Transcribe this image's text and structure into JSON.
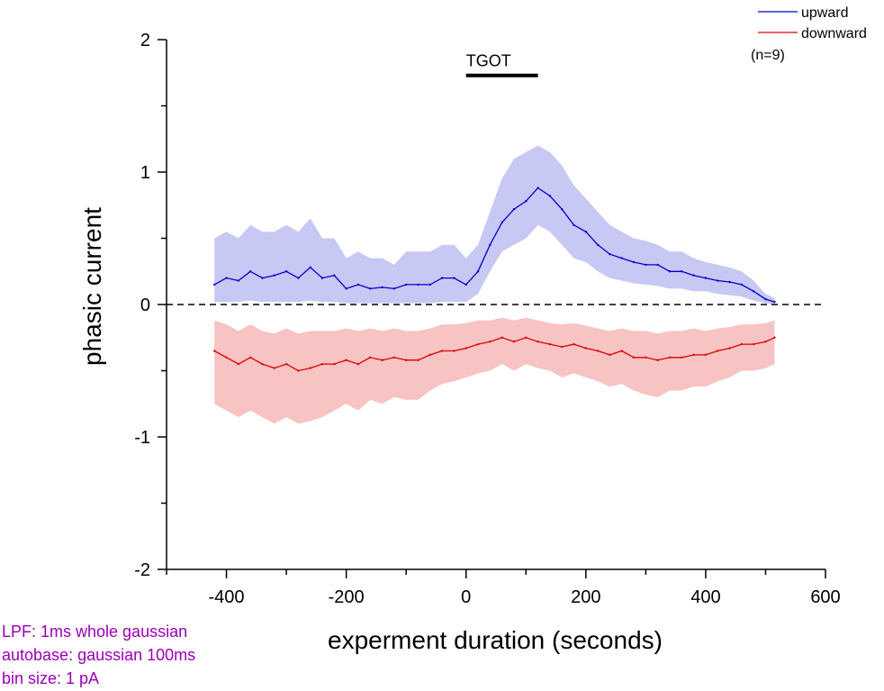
{
  "chart_data": {
    "type": "line",
    "xlabel": "experment duration (seconds)",
    "ylabel": "phasic current",
    "xlim": [
      -500,
      600
    ],
    "ylim": [
      -2,
      2
    ],
    "x_ticks": [
      -400,
      -200,
      0,
      200,
      400,
      600
    ],
    "x_tick_labels": [
      "-400",
      "-200",
      "0",
      "200",
      "400",
      "600"
    ],
    "y_ticks": [
      -2,
      -1,
      0,
      1,
      2
    ],
    "y_tick_labels": [
      "-2",
      "-1",
      "0",
      "1",
      "2"
    ],
    "zero_line": {
      "y": 0,
      "style": "dashed"
    },
    "stimulus_bar": {
      "label": "TGOT",
      "x_start": 0,
      "x_end": 120,
      "y": 1.73
    },
    "legend": {
      "placement": "top-right",
      "entries": [
        "upward",
        "downward"
      ],
      "note": "(n=9)"
    },
    "series": [
      {
        "name": "upward",
        "color": "#0000cc",
        "band_color": "#c8c8f5",
        "x": [
          -420,
          -400,
          -380,
          -360,
          -340,
          -320,
          -300,
          -280,
          -260,
          -240,
          -220,
          -200,
          -180,
          -160,
          -140,
          -120,
          -100,
          -80,
          -60,
          -40,
          -20,
          0,
          20,
          40,
          60,
          80,
          100,
          120,
          140,
          160,
          180,
          200,
          220,
          240,
          260,
          280,
          300,
          320,
          340,
          360,
          380,
          400,
          420,
          440,
          460,
          480,
          500,
          515
        ],
        "values": [
          0.15,
          0.2,
          0.18,
          0.25,
          0.2,
          0.22,
          0.25,
          0.2,
          0.28,
          0.2,
          0.22,
          0.12,
          0.15,
          0.12,
          0.13,
          0.12,
          0.15,
          0.15,
          0.15,
          0.2,
          0.2,
          0.15,
          0.25,
          0.45,
          0.62,
          0.72,
          0.78,
          0.88,
          0.82,
          0.72,
          0.6,
          0.55,
          0.45,
          0.38,
          0.35,
          0.32,
          0.3,
          0.3,
          0.25,
          0.25,
          0.22,
          0.2,
          0.18,
          0.17,
          0.15,
          0.1,
          0.04,
          0.02
        ],
        "upper": [
          0.5,
          0.55,
          0.5,
          0.6,
          0.55,
          0.55,
          0.6,
          0.55,
          0.65,
          0.5,
          0.5,
          0.35,
          0.4,
          0.35,
          0.35,
          0.3,
          0.4,
          0.4,
          0.4,
          0.45,
          0.45,
          0.35,
          0.45,
          0.7,
          0.95,
          1.1,
          1.15,
          1.2,
          1.15,
          1.05,
          0.9,
          0.8,
          0.7,
          0.6,
          0.55,
          0.5,
          0.48,
          0.45,
          0.4,
          0.4,
          0.35,
          0.32,
          0.3,
          0.28,
          0.25,
          0.18,
          0.08,
          0.05
        ],
        "lower": [
          0.02,
          0.02,
          0.02,
          0.03,
          0.02,
          0.02,
          0.02,
          0.02,
          0.03,
          0.02,
          0.02,
          0.01,
          0.01,
          0.01,
          0.01,
          0.01,
          0.01,
          0.01,
          0.01,
          0.02,
          0.02,
          0.02,
          0.08,
          0.25,
          0.4,
          0.45,
          0.5,
          0.6,
          0.55,
          0.45,
          0.35,
          0.32,
          0.25,
          0.2,
          0.18,
          0.16,
          0.15,
          0.14,
          0.12,
          0.12,
          0.1,
          0.1,
          0.08,
          0.07,
          0.06,
          0.03,
          0.01,
          0.0
        ]
      },
      {
        "name": "downward",
        "color": "#dd0000",
        "band_color": "#f7c3c3",
        "x": [
          -420,
          -400,
          -380,
          -360,
          -340,
          -320,
          -300,
          -280,
          -260,
          -240,
          -220,
          -200,
          -180,
          -160,
          -140,
          -120,
          -100,
          -80,
          -60,
          -40,
          -20,
          0,
          20,
          40,
          60,
          80,
          100,
          120,
          140,
          160,
          180,
          200,
          220,
          240,
          260,
          280,
          300,
          320,
          340,
          360,
          380,
          400,
          420,
          440,
          460,
          480,
          500,
          515
        ],
        "values": [
          -0.35,
          -0.4,
          -0.45,
          -0.4,
          -0.45,
          -0.48,
          -0.45,
          -0.5,
          -0.48,
          -0.45,
          -0.45,
          -0.42,
          -0.45,
          -0.4,
          -0.42,
          -0.4,
          -0.42,
          -0.42,
          -0.38,
          -0.35,
          -0.35,
          -0.33,
          -0.3,
          -0.28,
          -0.25,
          -0.28,
          -0.25,
          -0.28,
          -0.3,
          -0.32,
          -0.3,
          -0.33,
          -0.35,
          -0.38,
          -0.35,
          -0.4,
          -0.4,
          -0.42,
          -0.4,
          -0.4,
          -0.38,
          -0.38,
          -0.35,
          -0.33,
          -0.3,
          -0.3,
          -0.28,
          -0.25
        ],
        "upper": [
          -0.12,
          -0.15,
          -0.2,
          -0.15,
          -0.2,
          -0.22,
          -0.18,
          -0.22,
          -0.2,
          -0.2,
          -0.2,
          -0.18,
          -0.2,
          -0.18,
          -0.2,
          -0.18,
          -0.2,
          -0.2,
          -0.18,
          -0.15,
          -0.15,
          -0.14,
          -0.12,
          -0.12,
          -0.1,
          -0.12,
          -0.1,
          -0.12,
          -0.14,
          -0.15,
          -0.14,
          -0.16,
          -0.18,
          -0.2,
          -0.18,
          -0.2,
          -0.2,
          -0.22,
          -0.2,
          -0.2,
          -0.18,
          -0.2,
          -0.18,
          -0.17,
          -0.15,
          -0.15,
          -0.14,
          -0.12
        ],
        "lower": [
          -0.75,
          -0.8,
          -0.85,
          -0.8,
          -0.85,
          -0.9,
          -0.85,
          -0.9,
          -0.88,
          -0.85,
          -0.8,
          -0.75,
          -0.8,
          -0.72,
          -0.75,
          -0.7,
          -0.72,
          -0.72,
          -0.65,
          -0.6,
          -0.58,
          -0.55,
          -0.52,
          -0.5,
          -0.45,
          -0.5,
          -0.45,
          -0.48,
          -0.5,
          -0.55,
          -0.52,
          -0.55,
          -0.58,
          -0.62,
          -0.6,
          -0.65,
          -0.68,
          -0.7,
          -0.65,
          -0.65,
          -0.62,
          -0.62,
          -0.58,
          -0.55,
          -0.5,
          -0.5,
          -0.48,
          -0.45
        ]
      }
    ]
  },
  "notes": [
    {
      "text": "LPF: 1ms whole gaussian",
      "color": "#9b00b5"
    },
    {
      "text": "autobase: gaussian 100ms",
      "color": "#9b00b5"
    },
    {
      "text": "bin size: 1 pA",
      "color": "#9b00b5"
    }
  ]
}
